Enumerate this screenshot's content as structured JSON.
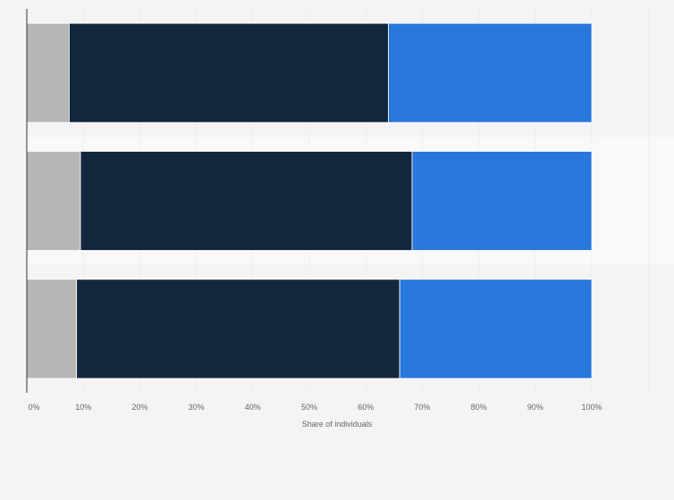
{
  "chart_data": {
    "type": "bar",
    "orientation": "horizontal",
    "stacked": true,
    "categories": [
      "",
      "",
      ""
    ],
    "series": [
      {
        "values": [
          7.5,
          9.5,
          8.8
        ],
        "color": "#b6b6b6"
      },
      {
        "values": [
          56.5,
          58.7,
          57.2
        ],
        "color": "#12263d"
      },
      {
        "values": [
          36.0,
          31.8,
          34.0
        ],
        "color": "#2877db"
      }
    ],
    "xlabel": "Share of individuals",
    "xlim": [
      0,
      110
    ],
    "xticks": [
      "0%",
      "10%",
      "20%",
      "30%",
      "40%",
      "50%",
      "60%",
      "70%",
      "80%",
      "90%",
      "100%"
    ],
    "grid": true,
    "legend": "none"
  }
}
